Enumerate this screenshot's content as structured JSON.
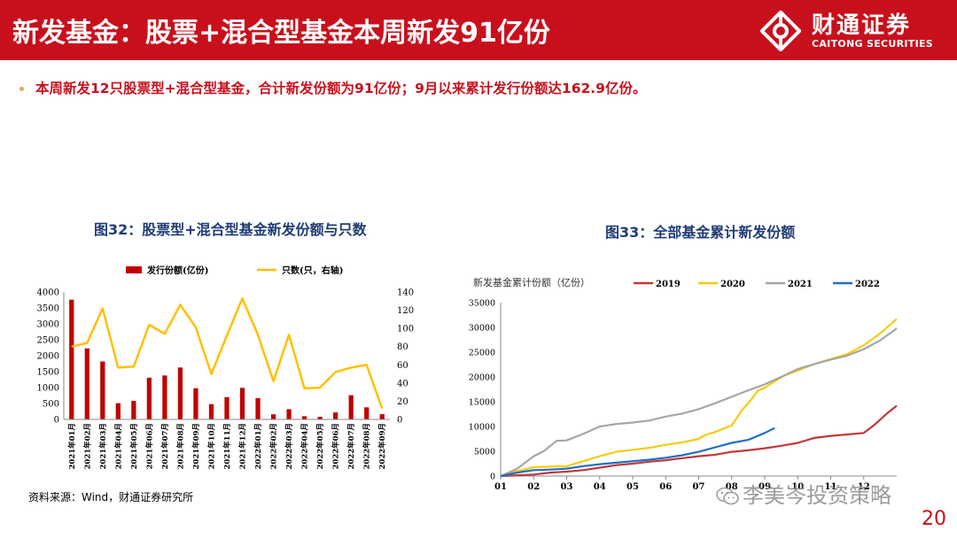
{
  "header": {
    "title": "新发基金：股票+混合型基金本周新发91亿份"
  },
  "logo": {
    "cn": "财通证券",
    "en": "CAITONG SECURITIES"
  },
  "bullet": "本周新发12只股票型+混合型基金，合计新发份额为91亿份；9月以来累计发行份额达162.9亿份。",
  "figures": {
    "left_title": "图32：股票型+混合型基金新发份额与只数",
    "right_title": "图33：全部基金累计新发份额"
  },
  "source": "资料来源：Wind，财通证券研究所",
  "watermark": "李美岑投资策略",
  "page_number": "20",
  "colors": {
    "brand_red": "#c8101c",
    "bar": "#c00000",
    "line_yellow": "#ffc000",
    "c2019": "#c0383a",
    "c2020": "#f5cc12",
    "c2021": "#a6a6a6",
    "c2022": "#1f6fc2"
  },
  "chart_data": [
    {
      "type": "bar+line",
      "legend": [
        "发行份额(亿份)",
        "只数(只，右轴)"
      ],
      "categories": [
        "2021年01月",
        "2021年02月",
        "2021年03月",
        "2021年04月",
        "2021年05月",
        "2021年06月",
        "2021年07月",
        "2021年08月",
        "2021年09月",
        "2021年10月",
        "2021年11月",
        "2021年12月",
        "2022年01月",
        "2022年02月",
        "2022年03月",
        "2022年04月",
        "2022年05月",
        "2022年06月",
        "2022年07月",
        "2022年08月",
        "2022年09月"
      ],
      "bar_values": [
        3760,
        2230,
        1820,
        510,
        580,
        1310,
        1380,
        1630,
        980,
        480,
        700,
        990,
        670,
        160,
        320,
        100,
        80,
        220,
        760,
        380,
        163
      ],
      "line_values": [
        80,
        84,
        122,
        57,
        58,
        104,
        94,
        126,
        101,
        50,
        92,
        133,
        93,
        42,
        93,
        34,
        35,
        52,
        57,
        60,
        12
      ],
      "ylim_left": [
        0,
        4000
      ],
      "yticks_left": [
        "4000",
        "3500",
        "3000",
        "2500",
        "2000",
        "1500",
        "1000",
        "500",
        "0"
      ],
      "ylim_right": [
        0,
        140
      ],
      "yticks_right": [
        "140",
        "120",
        "100",
        "80",
        "60",
        "40",
        "20",
        "0"
      ]
    },
    {
      "type": "line",
      "ylabel": "新发基金累计份额（亿份）",
      "x_ticks": [
        "01",
        "02",
        "03",
        "04",
        "05",
        "06",
        "07",
        "08",
        "09",
        "10",
        "11",
        "12"
      ],
      "ylim": [
        0,
        35000
      ],
      "yticks": [
        "35000",
        "30000",
        "25000",
        "20000",
        "15000",
        "10000",
        "5000",
        "0"
      ],
      "series": [
        {
          "name": "2019",
          "months": [
            0,
            1,
            1.5,
            2,
            2.5,
            3,
            3.5,
            4,
            4.5,
            5,
            5.5,
            6,
            6.5,
            7,
            7.5,
            8,
            8.5,
            9,
            9.5,
            10,
            10.5,
            11,
            11.3,
            11.7,
            12
          ],
          "values": [
            0,
            300,
            700,
            900,
            1200,
            1700,
            2200,
            2500,
            2900,
            3200,
            3600,
            4000,
            4300,
            4900,
            5200,
            5600,
            6100,
            6700,
            7700,
            8100,
            8400,
            8700,
            10200,
            12600,
            14200
          ]
        },
        {
          "name": "2020",
          "months": [
            0,
            0.5,
            1,
            1.5,
            2,
            2.5,
            3,
            3.5,
            4,
            4.5,
            5,
            5.5,
            6,
            6.2,
            6.5,
            7,
            7.3,
            7.6,
            7.8,
            8,
            8.3,
            8.6,
            9,
            9.5,
            10,
            10.5,
            11,
            11.5,
            12
          ],
          "values": [
            0,
            1000,
            1800,
            1900,
            2000,
            3000,
            4000,
            4900,
            5300,
            5700,
            6300,
            6800,
            7500,
            8300,
            8900,
            10200,
            13200,
            15500,
            17300,
            17800,
            19100,
            20300,
            21300,
            22600,
            23600,
            24600,
            26400,
            28800,
            31700
          ]
        },
        {
          "name": "2021",
          "months": [
            0,
            0.5,
            1,
            1.3,
            1.7,
            2,
            2.5,
            3,
            3.5,
            4,
            4.5,
            5,
            5.5,
            6,
            6.5,
            7,
            7.5,
            8,
            8.5,
            9,
            9.5,
            10,
            10.5,
            11,
            11.5,
            12
          ],
          "values": [
            0,
            1500,
            4000,
            5000,
            7100,
            7200,
            8500,
            10000,
            10500,
            10800,
            11200,
            12000,
            12600,
            13500,
            14700,
            16000,
            17300,
            18500,
            20000,
            21600,
            22600,
            23500,
            24300,
            25600,
            27400,
            29800
          ]
        },
        {
          "name": "2022",
          "months": [
            0,
            0.5,
            1,
            1.5,
            2,
            2.5,
            3,
            3.5,
            4,
            4.5,
            5,
            5.5,
            6,
            6.5,
            7,
            7.5,
            8,
            8.3
          ],
          "values": [
            0,
            700,
            1200,
            1300,
            1500,
            2000,
            2400,
            2700,
            3000,
            3300,
            3700,
            4200,
            4900,
            5800,
            6700,
            7300,
            8700,
            9700
          ]
        }
      ]
    }
  ]
}
